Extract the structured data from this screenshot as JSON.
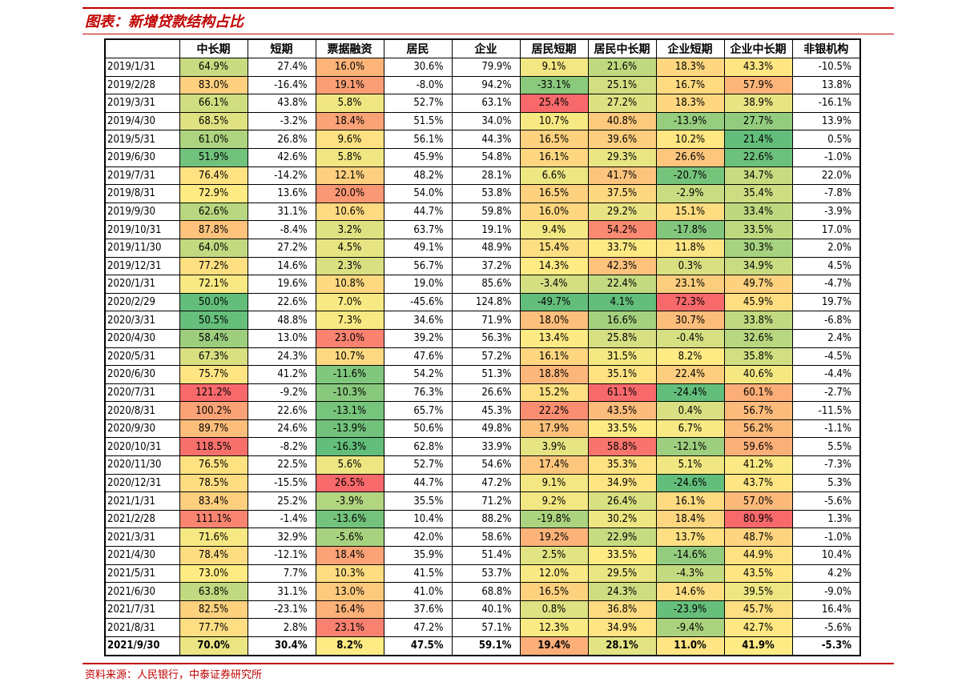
{
  "title": "图表：新增贷款结构占比",
  "source": "资料来源：人民银行，中泰证券研究所",
  "columns": [
    "",
    "中长期",
    "短期",
    "票据融资",
    "居民",
    "企业",
    "居民短期",
    "居民中长期",
    "企业短期",
    "企业中长期",
    "非银机构"
  ],
  "colored_columns": [
    1,
    3,
    6,
    7,
    8,
    9
  ],
  "rows": [
    [
      "2019/1/31",
      "64.9%",
      "27.4%",
      "16.0%",
      "30.6%",
      "79.9%",
      "9.1%",
      "21.6%",
      "18.3%",
      "43.3%",
      "-10.5%"
    ],
    [
      "2019/2/28",
      "83.0%",
      "-16.4%",
      "19.1%",
      "-8.0%",
      "94.2%",
      "-33.1%",
      "25.1%",
      "16.7%",
      "57.9%",
      "13.8%"
    ],
    [
      "2019/3/31",
      "66.1%",
      "43.8%",
      "5.8%",
      "52.7%",
      "63.1%",
      "25.4%",
      "27.2%",
      "18.3%",
      "38.9%",
      "-16.1%"
    ],
    [
      "2019/4/30",
      "68.5%",
      "-3.2%",
      "18.4%",
      "51.5%",
      "34.0%",
      "10.7%",
      "40.8%",
      "-13.9%",
      "27.7%",
      "13.9%"
    ],
    [
      "2019/5/31",
      "61.0%",
      "26.8%",
      "9.6%",
      "56.1%",
      "44.3%",
      "16.5%",
      "39.6%",
      "10.2%",
      "21.4%",
      "0.5%"
    ],
    [
      "2019/6/30",
      "51.9%",
      "42.6%",
      "5.8%",
      "45.9%",
      "54.8%",
      "16.1%",
      "29.3%",
      "26.6%",
      "22.6%",
      "-1.0%"
    ],
    [
      "2019/7/31",
      "76.4%",
      "-14.2%",
      "12.1%",
      "48.2%",
      "28.1%",
      "6.6%",
      "41.7%",
      "-20.7%",
      "34.7%",
      "22.0%"
    ],
    [
      "2019/8/31",
      "72.9%",
      "13.6%",
      "20.0%",
      "54.0%",
      "53.8%",
      "16.5%",
      "37.5%",
      "-2.9%",
      "35.4%",
      "-7.8%"
    ],
    [
      "2019/9/30",
      "62.6%",
      "31.1%",
      "10.6%",
      "44.7%",
      "59.8%",
      "16.0%",
      "29.2%",
      "15.1%",
      "33.4%",
      "-3.9%"
    ],
    [
      "2019/10/31",
      "87.8%",
      "-8.4%",
      "3.2%",
      "63.7%",
      "19.1%",
      "9.4%",
      "54.2%",
      "-17.8%",
      "33.5%",
      "17.0%"
    ],
    [
      "2019/11/30",
      "64.0%",
      "27.2%",
      "4.5%",
      "49.1%",
      "48.9%",
      "15.4%",
      "33.7%",
      "11.8%",
      "30.3%",
      "2.0%"
    ],
    [
      "2019/12/31",
      "77.2%",
      "14.6%",
      "2.3%",
      "56.7%",
      "37.2%",
      "14.3%",
      "42.3%",
      "0.3%",
      "34.9%",
      "4.5%"
    ],
    [
      "2020/1/31",
      "72.1%",
      "19.6%",
      "10.8%",
      "19.0%",
      "85.6%",
      "-3.4%",
      "22.4%",
      "23.1%",
      "49.7%",
      "-4.7%"
    ],
    [
      "2020/2/29",
      "50.0%",
      "22.6%",
      "7.0%",
      "-45.6%",
      "124.8%",
      "-49.7%",
      "4.1%",
      "72.3%",
      "45.9%",
      "19.7%"
    ],
    [
      "2020/3/31",
      "50.5%",
      "48.8%",
      "7.3%",
      "34.6%",
      "71.9%",
      "18.0%",
      "16.6%",
      "30.7%",
      "33.8%",
      "-6.8%"
    ],
    [
      "2020/4/30",
      "58.4%",
      "13.0%",
      "23.0%",
      "39.2%",
      "56.3%",
      "13.4%",
      "25.8%",
      "-0.4%",
      "32.6%",
      "2.4%"
    ],
    [
      "2020/5/31",
      "67.3%",
      "24.3%",
      "10.7%",
      "47.6%",
      "57.2%",
      "16.1%",
      "31.5%",
      "8.2%",
      "35.8%",
      "-4.5%"
    ],
    [
      "2020/6/30",
      "75.7%",
      "41.2%",
      "-11.6%",
      "54.2%",
      "51.3%",
      "18.8%",
      "35.1%",
      "22.4%",
      "40.6%",
      "-4.4%"
    ],
    [
      "2020/7/31",
      "121.2%",
      "-9.2%",
      "-10.3%",
      "76.3%",
      "26.6%",
      "15.2%",
      "61.1%",
      "-24.4%",
      "60.1%",
      "-2.7%"
    ],
    [
      "2020/8/31",
      "100.2%",
      "22.6%",
      "-13.1%",
      "65.7%",
      "45.3%",
      "22.2%",
      "43.5%",
      "0.4%",
      "56.7%",
      "-11.5%"
    ],
    [
      "2020/9/30",
      "89.7%",
      "24.6%",
      "-13.9%",
      "50.6%",
      "49.8%",
      "17.9%",
      "33.5%",
      "6.7%",
      "56.2%",
      "-1.1%"
    ],
    [
      "2020/10/31",
      "118.5%",
      "-8.2%",
      "-16.3%",
      "62.8%",
      "33.9%",
      "3.9%",
      "58.8%",
      "-12.1%",
      "59.6%",
      "5.5%"
    ],
    [
      "2020/11/30",
      "76.5%",
      "22.5%",
      "5.6%",
      "52.7%",
      "54.6%",
      "17.4%",
      "35.3%",
      "5.1%",
      "41.2%",
      "-7.3%"
    ],
    [
      "2020/12/31",
      "78.5%",
      "-15.5%",
      "26.5%",
      "44.7%",
      "47.2%",
      "9.1%",
      "34.9%",
      "-24.6%",
      "43.7%",
      "5.3%"
    ],
    [
      "2021/1/31",
      "83.4%",
      "25.2%",
      "-3.9%",
      "35.5%",
      "71.2%",
      "9.2%",
      "26.4%",
      "16.1%",
      "57.0%",
      "-5.6%"
    ],
    [
      "2021/2/28",
      "111.1%",
      "-1.4%",
      "-13.6%",
      "10.4%",
      "88.2%",
      "-19.8%",
      "30.2%",
      "18.4%",
      "80.9%",
      "1.3%"
    ],
    [
      "2021/3/31",
      "71.6%",
      "32.9%",
      "-5.6%",
      "42.0%",
      "58.6%",
      "19.2%",
      "22.9%",
      "13.7%",
      "48.7%",
      "-1.0%"
    ],
    [
      "2021/4/30",
      "78.4%",
      "-12.1%",
      "18.4%",
      "35.9%",
      "51.4%",
      "2.5%",
      "33.5%",
      "-14.6%",
      "44.9%",
      "10.4%"
    ],
    [
      "2021/5/31",
      "73.0%",
      "7.7%",
      "10.3%",
      "41.5%",
      "53.7%",
      "12.0%",
      "29.5%",
      "-4.3%",
      "43.5%",
      "4.2%"
    ],
    [
      "2021/6/30",
      "63.8%",
      "31.1%",
      "13.0%",
      "41.0%",
      "68.8%",
      "16.5%",
      "24.3%",
      "14.6%",
      "39.5%",
      "-9.0%"
    ],
    [
      "2021/7/31",
      "82.5%",
      "-23.1%",
      "16.4%",
      "37.6%",
      "40.1%",
      "0.8%",
      "36.8%",
      "-23.9%",
      "45.7%",
      "16.4%"
    ],
    [
      "2021/8/31",
      "77.7%",
      "2.8%",
      "23.1%",
      "47.2%",
      "57.1%",
      "12.3%",
      "34.9%",
      "-9.4%",
      "42.7%",
      "-5.6%"
    ]
  ],
  "total_row": [
    "2021/9/30",
    "70.0%",
    "30.4%",
    "8.2%",
    "47.5%",
    "59.1%",
    "19.4%",
    "28.1%",
    "11.0%",
    "41.9%",
    "-5.3%"
  ],
  "colors": {
    "accent": "#c00000",
    "scale_low": "#63be7b",
    "scale_mid": "#ffeb84",
    "scale_high": "#f8696b"
  }
}
